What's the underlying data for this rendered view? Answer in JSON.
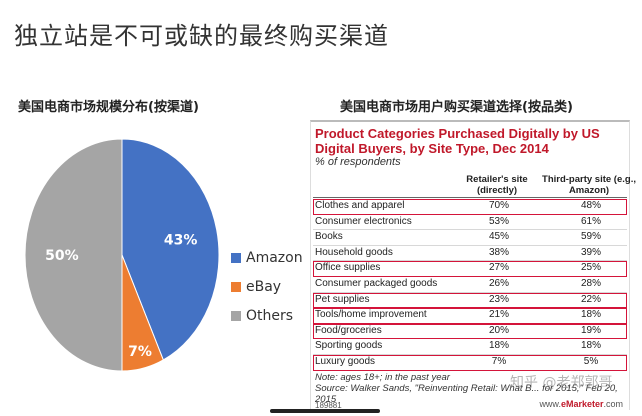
{
  "page": {
    "title": "独立站是不可或缺的最终购买渠道",
    "watermark": "知乎 @老郑郭哥"
  },
  "chart_data": [
    {
      "type": "pie",
      "title": "美国电商市场规模分布(按渠道)",
      "categories": [
        "Amazon",
        "eBay",
        "Others"
      ],
      "values": [
        43,
        7,
        50
      ],
      "labels": [
        "43%",
        "7%",
        "50%"
      ],
      "colors": [
        "#4472c4",
        "#ed7d31",
        "#a5a5a5"
      ],
      "legend": "right"
    },
    {
      "type": "table",
      "section_title": "美国电商市场用户购买渠道选择(按品类)",
      "title": "Product Categories Purchased Digitally by US Digital Buyers, by Site Type, Dec 2014",
      "subtitle": "% of respondents",
      "columns": [
        "Retailer's site (directly)",
        "Third-party site (e.g., Amazon)"
      ],
      "rows": [
        {
          "category": "Clothes and apparel",
          "retailer": "70%",
          "third_party": "48%",
          "highlighted": true
        },
        {
          "category": "Consumer electronics",
          "retailer": "53%",
          "third_party": "61%",
          "highlighted": false
        },
        {
          "category": "Books",
          "retailer": "45%",
          "third_party": "59%",
          "highlighted": false
        },
        {
          "category": "Household goods",
          "retailer": "38%",
          "third_party": "39%",
          "highlighted": false
        },
        {
          "category": "Office supplies",
          "retailer": "27%",
          "third_party": "25%",
          "highlighted": true
        },
        {
          "category": "Consumer packaged goods",
          "retailer": "26%",
          "third_party": "28%",
          "highlighted": false
        },
        {
          "category": "Pet supplies",
          "retailer": "23%",
          "third_party": "22%",
          "highlighted": true
        },
        {
          "category": "Tools/home improvement",
          "retailer": "21%",
          "third_party": "18%",
          "highlighted": true
        },
        {
          "category": "Food/groceries",
          "retailer": "20%",
          "third_party": "19%",
          "highlighted": true
        },
        {
          "category": "Sporting goods",
          "retailer": "18%",
          "third_party": "18%",
          "highlighted": false
        },
        {
          "category": "Luxury goods",
          "retailer": "7%",
          "third_party": "5%",
          "highlighted": true
        }
      ],
      "note": "Note: ages 18+; in the past year",
      "source": "Source: Walker Sands, \"Reinventing Retail: What B... for 2015,\" Feb 20, 2015",
      "chart_id": "189881",
      "publisher_prefix": "www.",
      "publisher_brand": "eMarketer",
      "publisher_suffix": ".com"
    }
  ]
}
